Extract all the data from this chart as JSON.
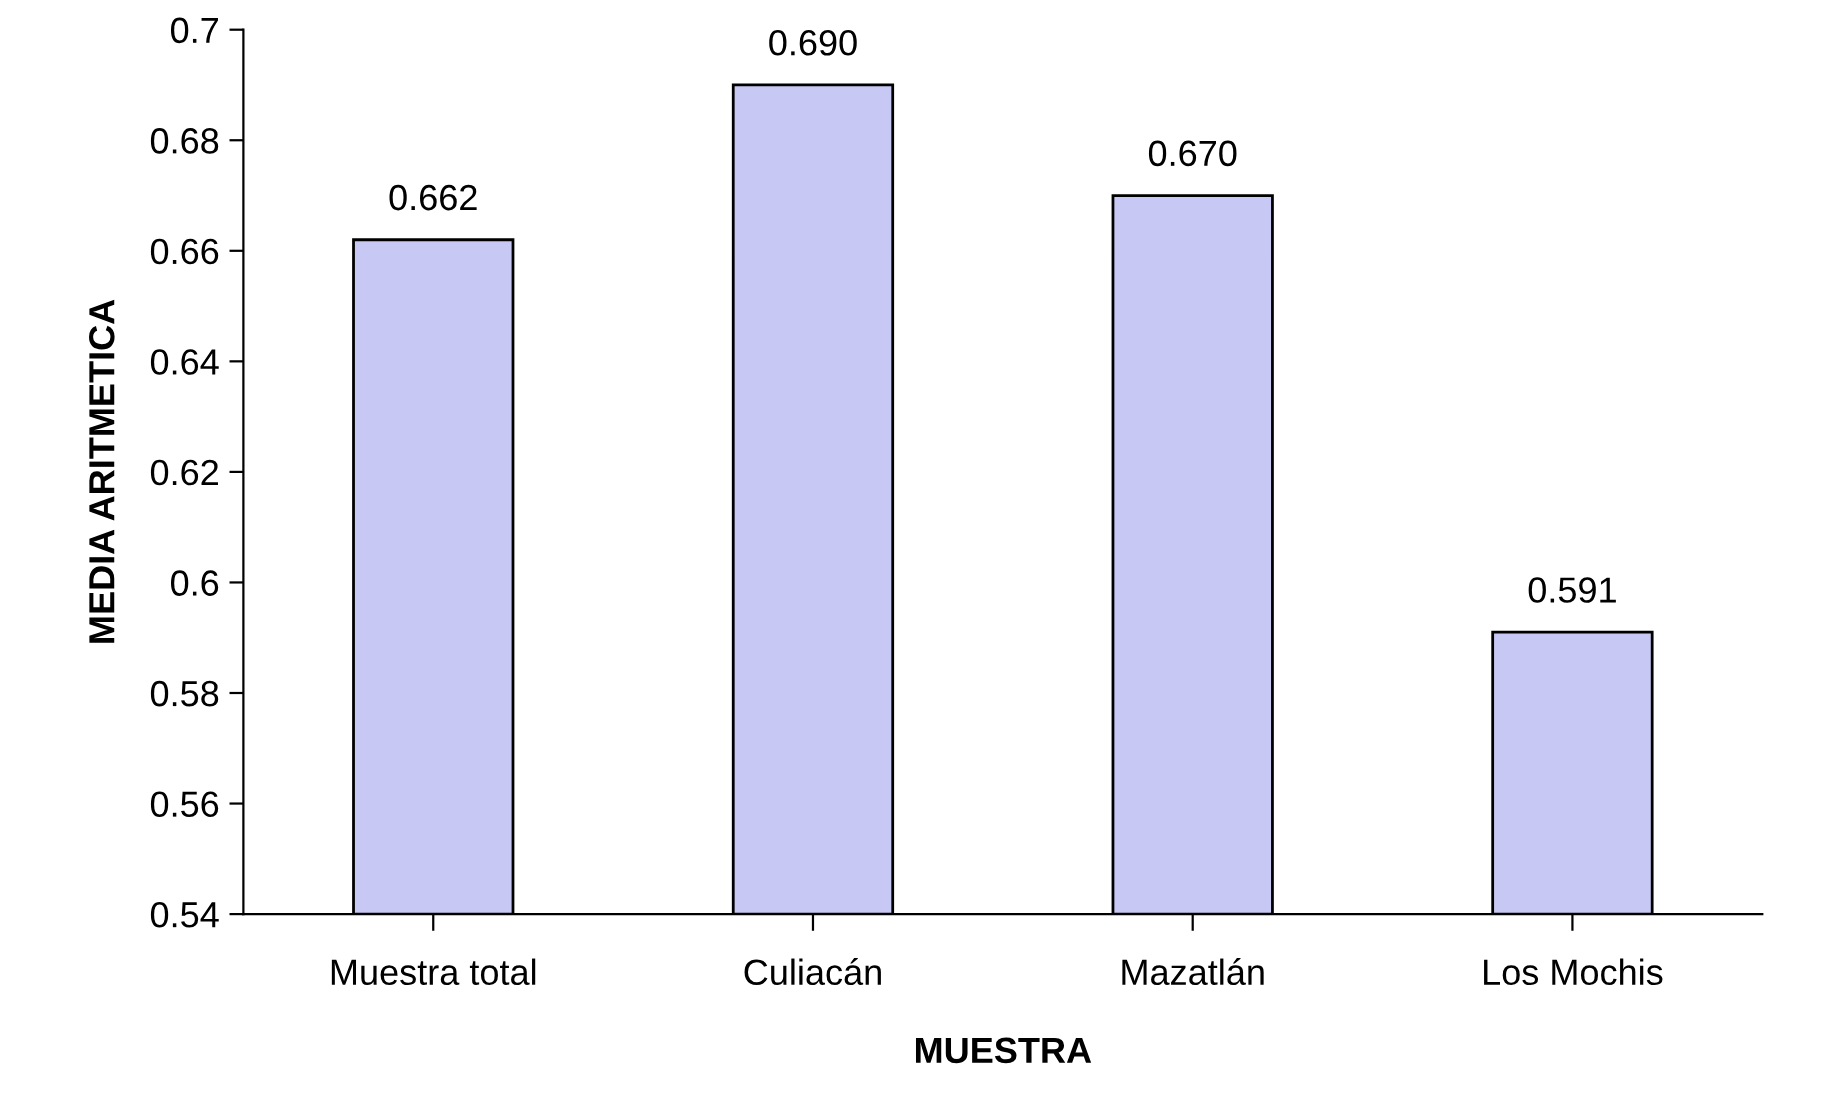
{
  "chart_data": {
    "type": "bar",
    "xlabel": "MUESTRA",
    "ylabel": "MEDIA ARITMETICA",
    "categories": [
      "Muestra total",
      "Culiacán",
      "Mazatlán",
      "Los Mochis"
    ],
    "values": [
      0.662,
      0.69,
      0.67,
      0.591
    ],
    "value_labels": [
      "0.662",
      "0.690",
      "0.670",
      "0.591"
    ],
    "color": "#c8c8f4",
    "ylim": [
      0.54,
      0.7
    ],
    "yticks": [
      0.54,
      0.56,
      0.58,
      {
        "value": 0.6,
        "label": "0.6"
      },
      0.62,
      0.64,
      0.66,
      0.68,
      {
        "value": 0.7,
        "label": "0.7"
      }
    ],
    "grid": false,
    "legend": false
  }
}
